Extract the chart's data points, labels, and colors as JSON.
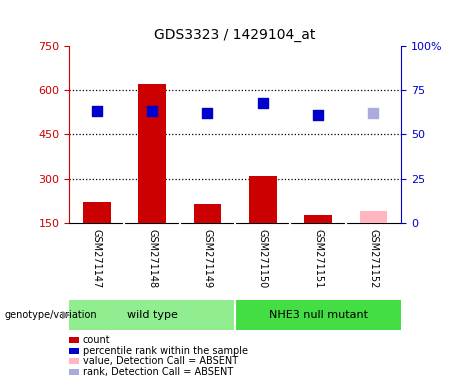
{
  "title": "GDS3323 / 1429104_at",
  "samples": [
    "GSM271147",
    "GSM271148",
    "GSM271149",
    "GSM271150",
    "GSM271151",
    "GSM271152"
  ],
  "count_values": [
    220,
    620,
    215,
    310,
    175,
    null
  ],
  "count_absent": [
    null,
    null,
    null,
    null,
    null,
    190
  ],
  "percentile_values": [
    63,
    63,
    62,
    68,
    61,
    null
  ],
  "percentile_absent": [
    null,
    null,
    null,
    null,
    null,
    62
  ],
  "left_ylim": [
    150,
    750
  ],
  "left_yticks": [
    150,
    300,
    450,
    600,
    750
  ],
  "right_ylim": [
    0,
    100
  ],
  "right_yticks": [
    0,
    25,
    50,
    75,
    100
  ],
  "right_yticklabels": [
    "0",
    "25",
    "50",
    "75",
    "100%"
  ],
  "bar_color": "#CC0000",
  "bar_absent_color": "#FFB6C1",
  "dot_color": "#0000CC",
  "dot_absent_color": "#AAAADD",
  "bg_color": "#C8C8C8",
  "wt_color": "#90EE90",
  "nhe3_color": "#44DD44",
  "legend": [
    {
      "label": "count",
      "color": "#CC0000"
    },
    {
      "label": "percentile rank within the sample",
      "color": "#0000CC"
    },
    {
      "label": "value, Detection Call = ABSENT",
      "color": "#FFB6C1"
    },
    {
      "label": "rank, Detection Call = ABSENT",
      "color": "#AAAADD"
    }
  ]
}
